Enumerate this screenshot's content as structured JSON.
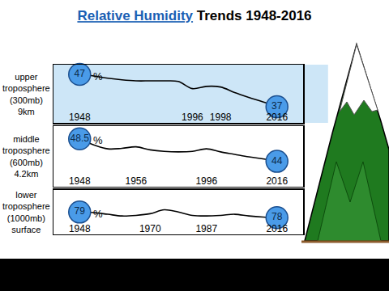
{
  "title": [
    "Relative Humidity",
    "Trends 1948-2016"
  ],
  "chart_data": [
    {
      "type": "line",
      "ylabel": "upper\ntroposphere\n(300mb)\n9km",
      "categories": [
        "1948",
        null,
        null,
        null,
        null,
        null,
        null,
        null,
        "1996",
        null,
        "1998",
        null,
        null,
        null,
        "2016"
      ],
      "values": [
        47,
        46.5,
        45.8,
        45.3,
        45.0,
        45.0,
        45.0,
        44.8,
        42.6,
        43.3,
        43.1,
        41.4,
        39.9,
        38.5,
        37
      ],
      "value_labels": [
        "47",
        null,
        null,
        null,
        null,
        null,
        null,
        null,
        null,
        null,
        null,
        null,
        null,
        null,
        "37"
      ],
      "data_labels": true,
      "annotations": [
        "%"
      ],
      "ylim": [
        32,
        50
      ],
      "yticks": [],
      "grid": false,
      "tick_labels": "x",
      "color": "#4a9be8",
      "marker": "circle",
      "line_style": "smooth"
    },
    {
      "type": "line",
      "ylabel": "middle\ntroposphere\n(600mb)\n4.2km",
      "categories": [
        "1948",
        null,
        null,
        null,
        "1956",
        null,
        null,
        null,
        null,
        "1996",
        null,
        null,
        null,
        null,
        "2016"
      ],
      "values": [
        48.5,
        47.3,
        46.5,
        46.6,
        46.9,
        46.3,
        46.0,
        45.9,
        46.0,
        46.5,
        45.9,
        45.4,
        44.9,
        44.5,
        44
      ],
      "value_labels": [
        "48.5",
        null,
        null,
        null,
        null,
        null,
        null,
        null,
        null,
        null,
        null,
        null,
        null,
        null,
        "44"
      ],
      "data_labels": true,
      "annotations": [
        "%"
      ],
      "ylim": [
        39,
        51
      ],
      "yticks": [],
      "grid": false,
      "tick_labels": "x",
      "color": "#4a9be8",
      "marker": "circle",
      "line_style": "smooth"
    },
    {
      "type": "line",
      "ylabel": "lower\ntroposphere\n(1000mb)\nsurface",
      "categories": [
        "1948",
        null,
        null,
        null,
        null,
        "1970",
        null,
        null,
        null,
        "1987",
        null,
        null,
        null,
        null,
        "2016"
      ],
      "values": [
        79,
        78.9,
        78.6,
        78.3,
        78.4,
        78.7,
        79.4,
        79.0,
        78.4,
        78.3,
        78.4,
        78.6,
        78.3,
        78.1,
        78
      ],
      "value_labels": [
        "79",
        null,
        null,
        null,
        null,
        null,
        null,
        null,
        null,
        null,
        null,
        null,
        null,
        null,
        "78"
      ],
      "data_labels": true,
      "annotations": [
        "%"
      ],
      "ylim": [
        75,
        83
      ],
      "yticks": [],
      "grid": false,
      "tick_labels": "x",
      "color": "#4a9be8",
      "marker": "circle",
      "line_style": "smooth"
    }
  ]
}
